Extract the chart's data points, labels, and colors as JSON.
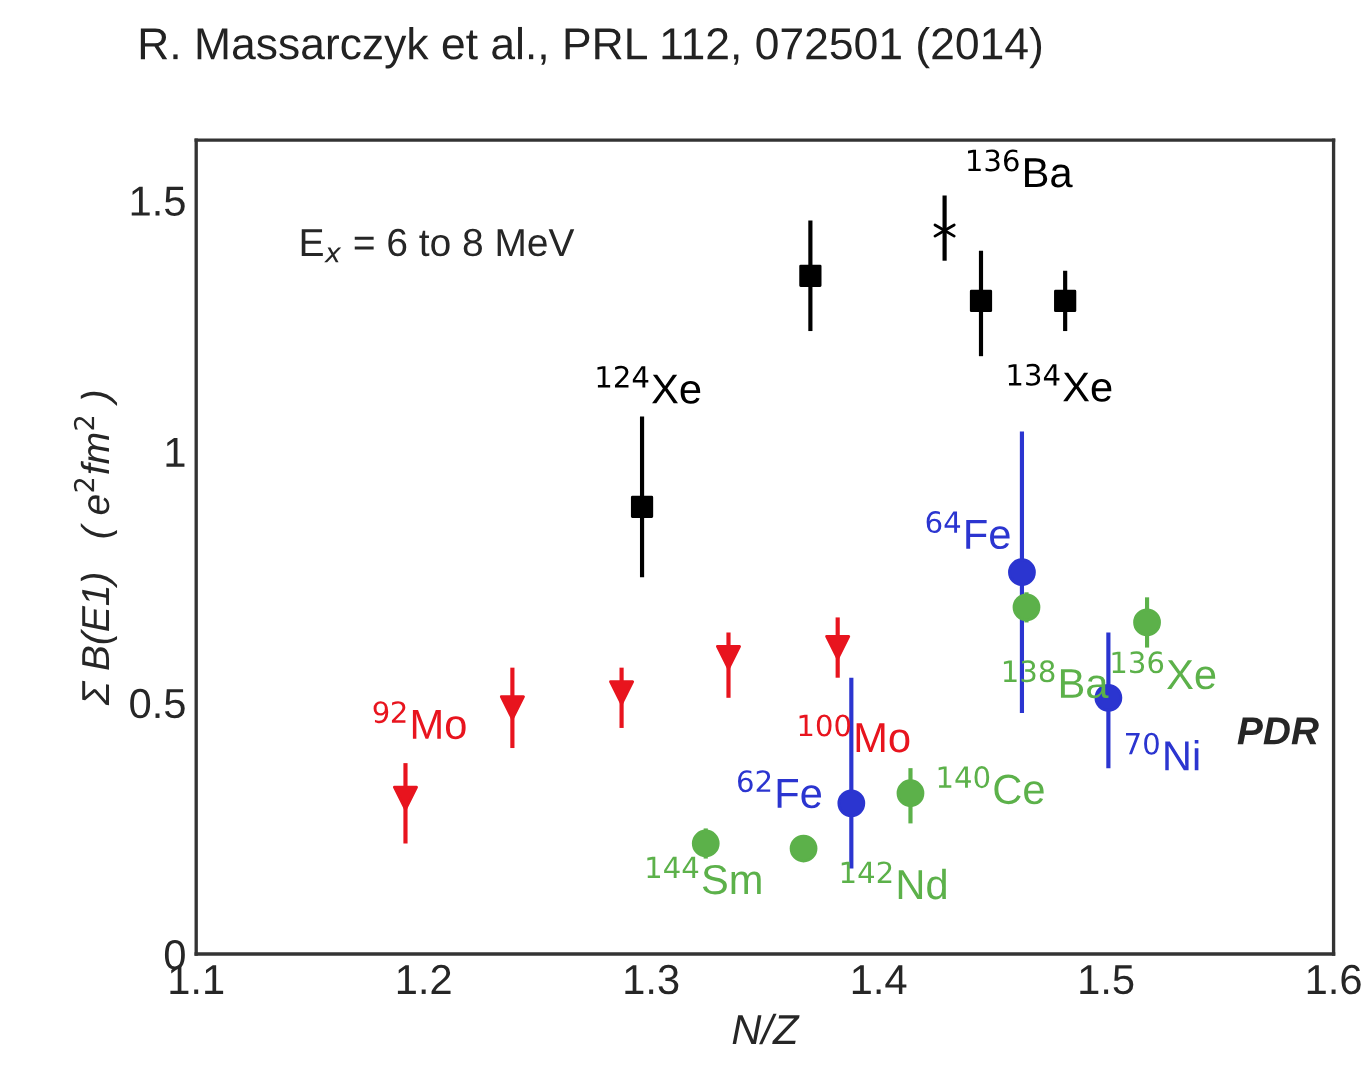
{
  "chart_data": {
    "type": "scatter",
    "title": "R. Massarczyk et al., PRL 112, 072501 (2014)",
    "xlabel": "N/Z",
    "ylabel": "Σ B(E1)   ( e$^{2}$fm$^{2}$ )",
    "xlim": [
      1.1,
      1.6
    ],
    "xticks": [
      1.1,
      1.2,
      1.3,
      1.4,
      1.5,
      1.6
    ],
    "ylim": [
      0,
      1.62
    ],
    "yticks": [
      0,
      0.5,
      1,
      1.5
    ],
    "grid": false,
    "legend": false,
    "series": [
      {
        "color": "#000000",
        "marker": "square",
        "x": [
          1.296,
          1.37,
          1.445,
          1.482
        ],
        "values": [
          0.89,
          1.35,
          1.3,
          1.3
        ],
        "errors": [
          [
            0.75,
            1.07
          ],
          [
            1.24,
            1.46
          ],
          [
            1.19,
            1.4
          ],
          [
            1.24,
            1.36
          ]
        ]
      },
      {
        "color": "#000000",
        "marker": "cross",
        "x": [
          1.429
        ],
        "values": [
          1.44
        ],
        "errors": [
          [
            1.38,
            1.51
          ]
        ]
      },
      {
        "color": "#e8141e",
        "marker": "triangle",
        "x": [
          1.192,
          1.239,
          1.287,
          1.334,
          1.382
        ],
        "values": [
          0.31,
          0.49,
          0.52,
          0.59,
          0.61
        ],
        "errors": [
          [
            0.22,
            0.38
          ],
          [
            0.41,
            0.57
          ],
          [
            0.45,
            0.57
          ],
          [
            0.51,
            0.64
          ],
          [
            0.55,
            0.67
          ]
        ]
      },
      {
        "color": "#2b35d0",
        "marker": "circle",
        "x": [
          1.388,
          1.463,
          1.501
        ],
        "values": [
          0.3,
          0.76,
          0.51
        ],
        "errors": [
          [
            0.17,
            0.55
          ],
          [
            0.48,
            1.04
          ],
          [
            0.37,
            0.64
          ]
        ]
      },
      {
        "color": "#5cb14a",
        "marker": "circle",
        "x": [
          1.324,
          1.367,
          1.414,
          1.465,
          1.518
        ],
        "values": [
          0.22,
          0.21,
          0.32,
          0.69,
          0.66
        ],
        "errors": [
          0.03,
          0.02,
          [
            0.26,
            0.37
          ],
          0.03,
          [
            0.61,
            0.71
          ]
        ]
      }
    ],
    "annotations": [
      "E$_{x}$ = 6 to 8 MeV",
      {
        "text": "$^{136}$Ba",
        "x": 1.429,
        "y": 1.44
      },
      {
        "text": "$^{124}$Xe",
        "x": 1.296,
        "y": 0.89
      },
      {
        "text": "$^{134}$Xe",
        "x": 1.482,
        "y": 1.3
      },
      {
        "text": "$^{64}$Fe",
        "x": 1.463,
        "y": 0.76
      },
      {
        "text": "$^{138}$Ba",
        "x": 1.465,
        "y": 0.69
      },
      {
        "text": "$^{136}$Xe",
        "x": 1.518,
        "y": 0.66
      },
      {
        "text": "$^{70}$Ni",
        "x": 1.501,
        "y": 0.51
      },
      "PDR",
      {
        "text": "$^{92}$Mo",
        "x": 1.192,
        "y": 0.31
      },
      {
        "text": "$^{100}$Mo",
        "x": 1.382,
        "y": 0.61
      },
      {
        "text": "$^{62}$Fe",
        "x": 1.388,
        "y": 0.3
      },
      {
        "text": "$^{140}$Ce",
        "x": 1.414,
        "y": 0.32
      },
      {
        "text": "$^{144}$Sm",
        "x": 1.324,
        "y": 0.22
      },
      {
        "text": "$^{142}$Nd",
        "x": 1.367,
        "y": 0.21
      }
    ]
  }
}
